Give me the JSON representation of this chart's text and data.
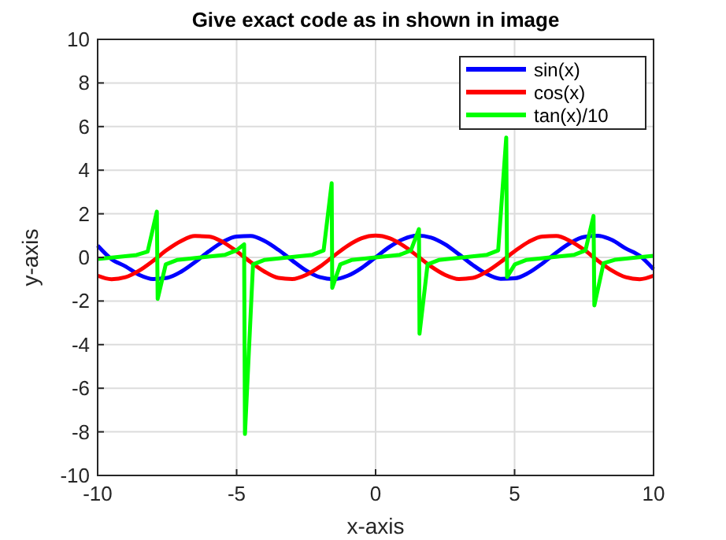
{
  "chart_data": {
    "type": "line",
    "title": "Give exact code as in shown in image",
    "xlabel": "x-axis",
    "ylabel": "y-axis",
    "xlim": [
      -10,
      10
    ],
    "xticks": [
      -10,
      -5,
      0,
      5,
      10
    ],
    "ylim": [
      -10,
      10
    ],
    "yticks": [
      -10,
      -8,
      -6,
      -4,
      -2,
      0,
      2,
      4,
      6,
      8,
      10
    ],
    "grid": true,
    "legend": "top right",
    "line_style": "solid",
    "marker": "none",
    "series": [
      {
        "name": "sin(x)",
        "color": "#0000ff",
        "x": [
          -10,
          -9.5,
          -9,
          -8.5,
          -8,
          -7.5,
          -7,
          -6.5,
          -6,
          -5.5,
          -5,
          -4.5,
          -4,
          -3.5,
          -3,
          -2.5,
          -2,
          -1.5,
          -1,
          -0.5,
          0,
          0.5,
          1,
          1.5,
          2,
          2.5,
          3,
          3.5,
          4,
          4.5,
          5,
          5.5,
          6,
          6.5,
          7,
          7.5,
          8,
          8.5,
          9,
          9.5,
          10
        ],
        "values": [
          0.54,
          -0.08,
          -0.41,
          -0.8,
          -0.99,
          -0.94,
          -0.66,
          -0.22,
          0.28,
          0.71,
          0.96,
          0.98,
          0.76,
          0.35,
          -0.14,
          -0.6,
          -0.91,
          -1,
          -0.84,
          -0.48,
          0,
          0.48,
          0.84,
          1,
          0.91,
          0.6,
          0.14,
          -0.35,
          -0.76,
          -0.98,
          -0.96,
          -0.71,
          -0.28,
          0.22,
          0.66,
          0.94,
          0.99,
          0.8,
          0.41,
          0.08,
          -0.54
        ]
      },
      {
        "name": "cos(x)",
        "color": "#ff0000",
        "x": [
          -10,
          -9.5,
          -9,
          -8.5,
          -8,
          -7.5,
          -7,
          -6.5,
          -6,
          -5.5,
          -5,
          -4.5,
          -4,
          -3.5,
          -3,
          -2.5,
          -2,
          -1.5,
          -1,
          -0.5,
          0,
          0.5,
          1,
          1.5,
          2,
          2.5,
          3,
          3.5,
          4,
          4.5,
          5,
          5.5,
          6,
          6.5,
          7,
          7.5,
          8,
          8.5,
          9,
          9.5,
          10
        ],
        "values": [
          -0.84,
          -1,
          -0.91,
          -0.6,
          -0.15,
          0.35,
          0.75,
          0.98,
          0.96,
          0.71,
          0.28,
          -0.21,
          -0.65,
          -0.94,
          -0.99,
          -0.8,
          -0.42,
          0.07,
          0.54,
          0.88,
          1,
          0.88,
          0.54,
          0.07,
          -0.42,
          -0.8,
          -0.99,
          -0.94,
          -0.65,
          -0.21,
          0.28,
          0.71,
          0.96,
          0.98,
          0.75,
          0.35,
          -0.15,
          -0.6,
          -0.91,
          -1,
          -0.84
        ]
      },
      {
        "name": "tan(x)/10",
        "color": "#00ff00",
        "x": [
          -10,
          -9.42,
          -8.6,
          -8.2,
          -7.87,
          -7.84,
          -7.55,
          -7.15,
          -6.28,
          -5.41,
          -5.01,
          -4.73,
          -4.7,
          -4.41,
          -4.01,
          -3.14,
          -2.27,
          -1.87,
          -1.58,
          -1.56,
          -1.27,
          -0.87,
          0,
          0.87,
          1.27,
          1.56,
          1.58,
          1.87,
          2.27,
          3.14,
          4.01,
          4.41,
          4.7,
          4.73,
          5.01,
          5.41,
          6.28,
          7.15,
          7.55,
          7.84,
          7.87,
          8.2,
          8.6,
          9.42,
          10
        ],
        "values": [
          -0.07,
          0,
          0.11,
          0.27,
          2.1,
          -1.9,
          -0.32,
          -0.12,
          0,
          0.12,
          0.32,
          0.6,
          -8.1,
          -0.32,
          -0.12,
          0,
          0.12,
          0.32,
          3.4,
          -1.4,
          -0.32,
          -0.12,
          0,
          0.12,
          0.32,
          1.3,
          -3.5,
          -0.32,
          -0.12,
          0,
          0.12,
          0.32,
          5.5,
          -0.9,
          -0.32,
          -0.12,
          0,
          0.12,
          0.32,
          1.9,
          -2.2,
          -0.27,
          -0.11,
          0,
          0.07
        ]
      }
    ]
  }
}
